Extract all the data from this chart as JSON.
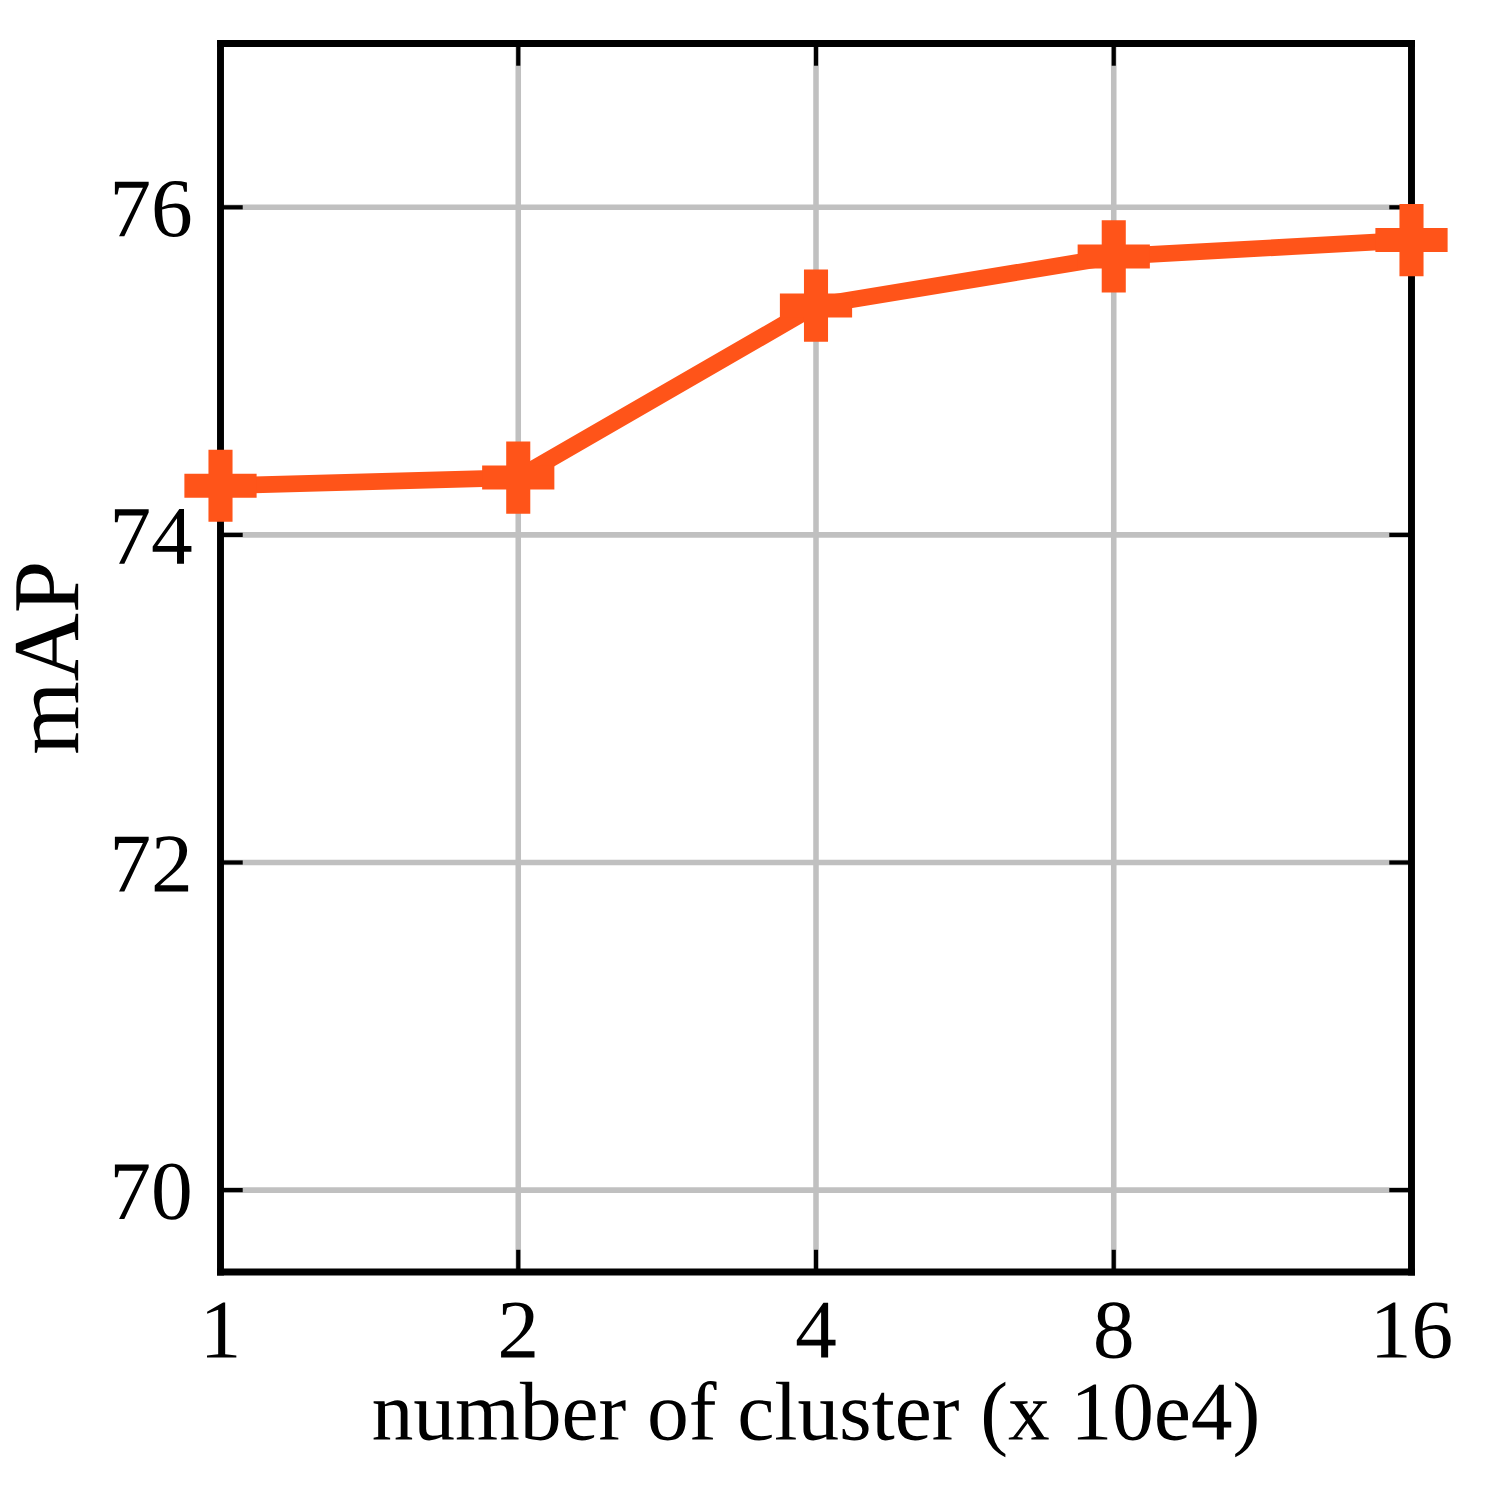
{
  "chart_data": {
    "type": "line",
    "xlabel": "number of cluster (x 10e4)",
    "ylabel": "mAP",
    "x": [
      1,
      2,
      4,
      8,
      16
    ],
    "series": [
      {
        "color": "#ff5419",
        "values": [
          74.3,
          74.35,
          75.4,
          75.7,
          75.8
        ]
      }
    ],
    "log": "x",
    "xlim": [
      1,
      16
    ],
    "xticks": [
      1,
      2,
      4,
      8,
      16
    ],
    "ylim": [
      69.5,
      77
    ],
    "yticks": [
      70,
      72,
      74,
      76
    ],
    "grid": true,
    "marker": "cross",
    "line_style": "solid"
  }
}
